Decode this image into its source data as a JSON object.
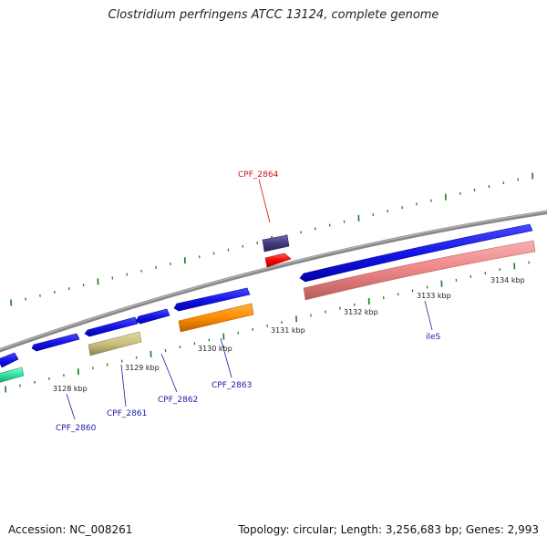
{
  "title": "Clostridium perfringens ATCC 13124, complete genome",
  "footer": {
    "accession": "Accession: NC_008261",
    "summary": "Topology: circular; Length: 3,256,683 bp; Genes: 2,993"
  },
  "kbp_labels": [
    "3128 kbp",
    "3129 kbp",
    "3130 kbp",
    "3131 kbp",
    "3132 kbp",
    "3133 kbp",
    "3134 kbp"
  ],
  "gene_labels": {
    "cpf2864": "CPF_2864",
    "cpf2860": "CPF_2860",
    "cpf2861": "CPF_2861",
    "cpf2862": "CPF_2862",
    "cpf2863": "CPF_2863",
    "iles": "ileS"
  },
  "colors": {
    "backbone": "#888888",
    "tick": "#1f7a1f",
    "cds_forward": "#1010e0",
    "cds_reverse": "#1010e0",
    "label_blue": "#1a1aa0",
    "label_red": "#cc1111",
    "teal": "#33e0a0",
    "khaki": "#c8c080",
    "orange": "#ff8c00",
    "pink": "#ef8a8a",
    "red": "#ff0000",
    "slate": "#443a80"
  }
}
